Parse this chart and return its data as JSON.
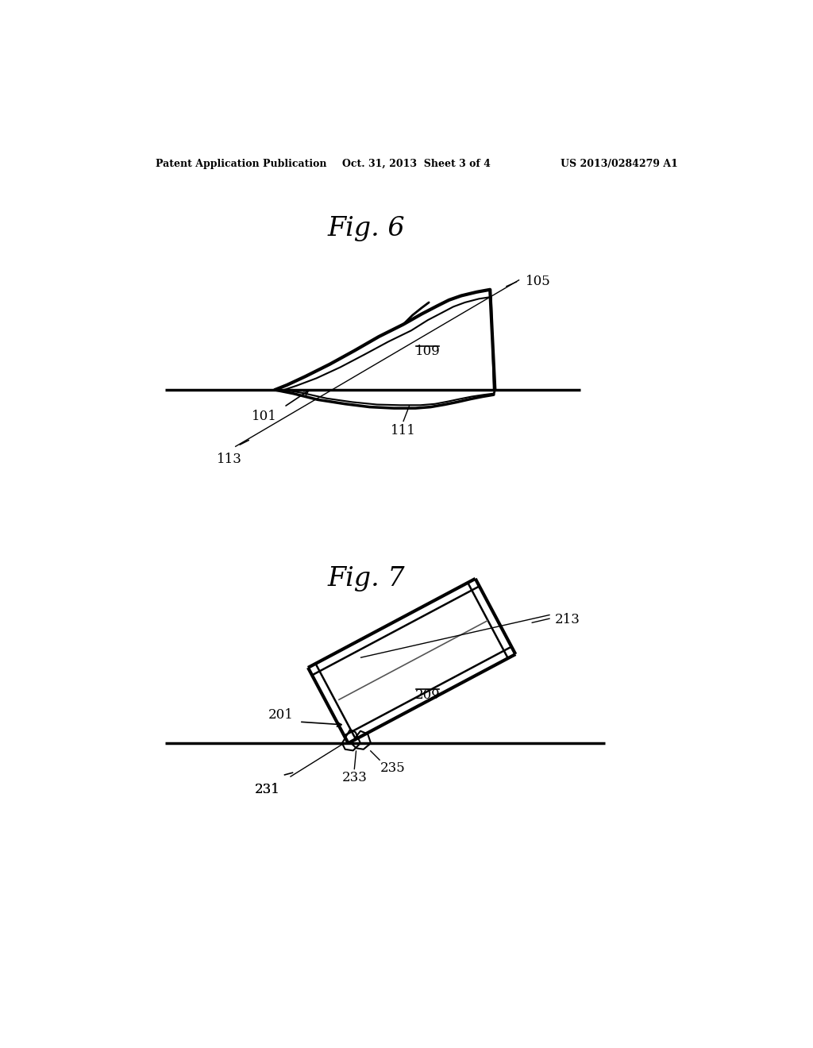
{
  "bg_color": "#ffffff",
  "header_left": "Patent Application Publication",
  "header_center": "Oct. 31, 2013  Sheet 3 of 4",
  "header_right": "US 2013/0284279 A1",
  "fig6_title": "Fig. 6",
  "fig7_title": "Fig. 7"
}
